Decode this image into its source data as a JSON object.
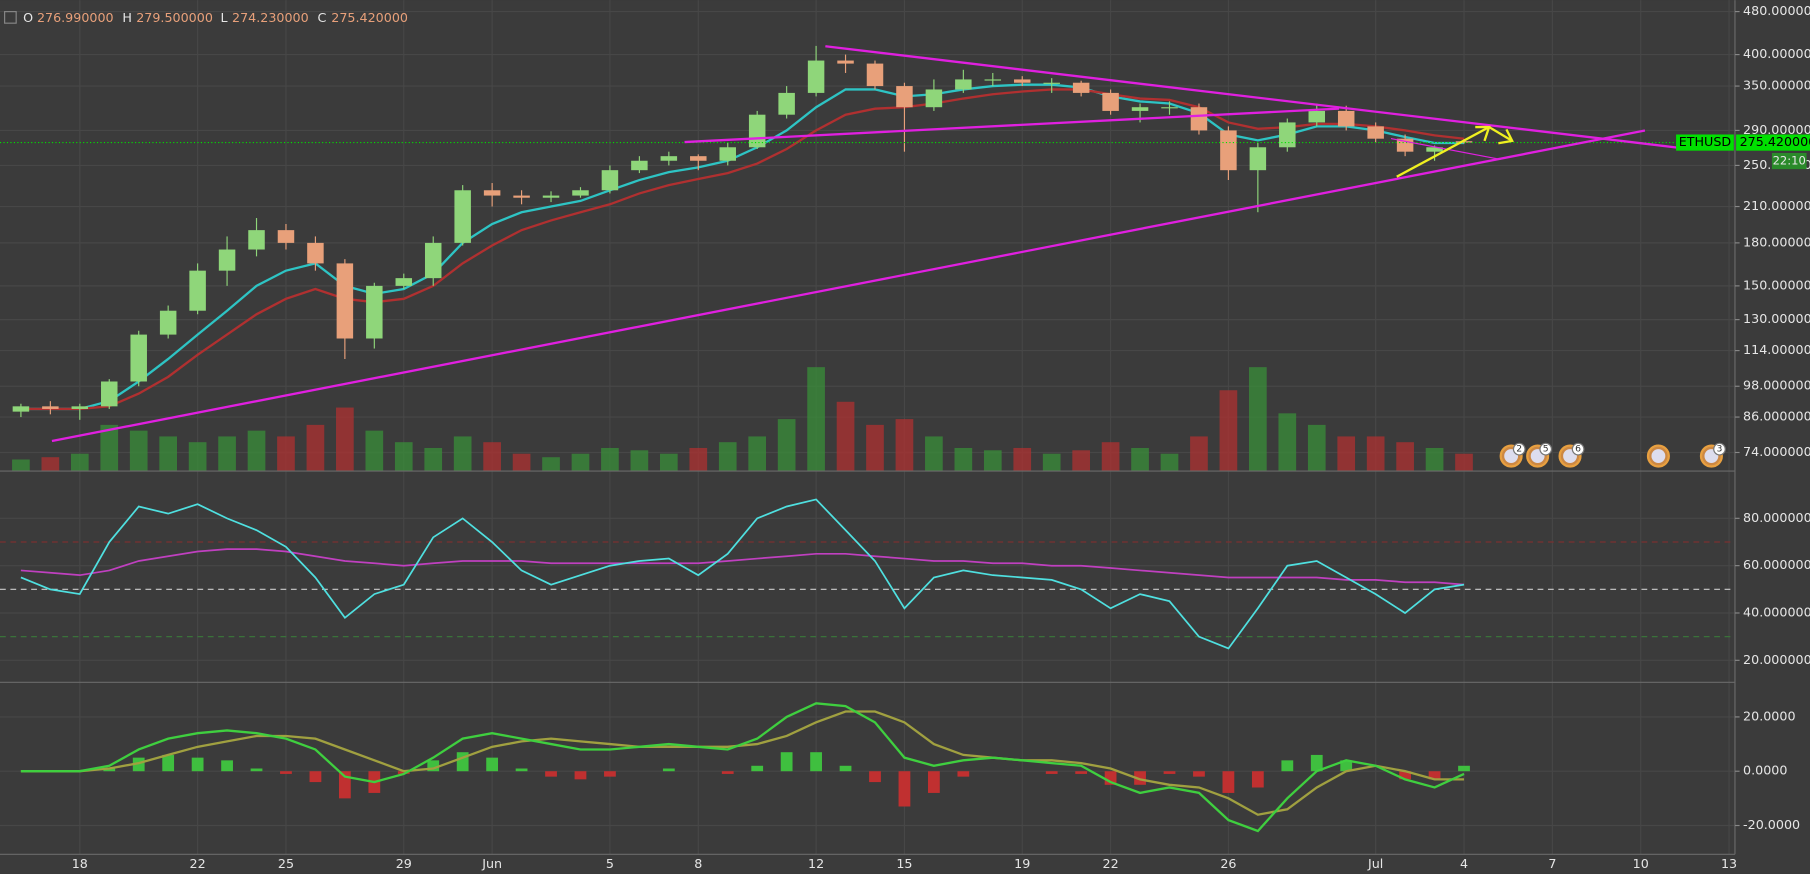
{
  "chart_data": {
    "type": "candlestick",
    "ylog": true,
    "ohlc": [
      {
        "label": "O",
        "value": "276.990000"
      },
      {
        "label": "H",
        "value": "279.500000"
      },
      {
        "label": "L",
        "value": "274.230000"
      },
      {
        "label": "C",
        "value": "275.420000"
      }
    ],
    "x": [
      16,
      17,
      18,
      19,
      20,
      21,
      22,
      23,
      24,
      25,
      26,
      27,
      28,
      29,
      30,
      31,
      32,
      33,
      34,
      35,
      36,
      37,
      38,
      39,
      40,
      41,
      42,
      43,
      44,
      45,
      46,
      47,
      48,
      49,
      50,
      51,
      52,
      53,
      54,
      55,
      56,
      57,
      58,
      59,
      60,
      61,
      62,
      63,
      64,
      65
    ],
    "xlim": [
      15.29,
      74.2
    ],
    "xticks": [
      18,
      22,
      25,
      29,
      {
        "value": 32,
        "label": "Jun"
      },
      {
        "value": 36,
        "label": "5"
      },
      {
        "value": 39,
        "label": "8"
      },
      {
        "value": 43,
        "label": "12"
      },
      {
        "value": 46,
        "label": "15"
      },
      {
        "value": 50,
        "label": "19"
      },
      {
        "value": 53,
        "label": "22"
      },
      {
        "value": 57,
        "label": "26"
      },
      {
        "value": 62,
        "label": "Jul"
      },
      {
        "value": 65,
        "label": "4"
      },
      {
        "value": 68,
        "label": "7"
      },
      {
        "value": 71,
        "label": "10"
      },
      {
        "value": 74,
        "label": "13"
      }
    ],
    "open": [
      88,
      90,
      89,
      90,
      100,
      122,
      135,
      160,
      175,
      190,
      180,
      165,
      120,
      150,
      155,
      180,
      225,
      220,
      218,
      220,
      225,
      245,
      255,
      260,
      255,
      270,
      310,
      340,
      390,
      385,
      350,
      320,
      345,
      360,
      360,
      355,
      355,
      340,
      315,
      320,
      320,
      290,
      245,
      270,
      300,
      315,
      295,
      280,
      265,
      276.99
    ],
    "high": [
      91,
      92,
      91,
      101,
      124,
      138,
      165,
      185,
      200,
      195,
      185,
      168,
      152,
      158,
      185,
      230,
      232,
      225,
      224,
      228,
      250,
      260,
      265,
      262,
      275,
      315,
      350,
      415,
      400,
      390,
      355,
      360,
      375,
      370,
      365,
      362,
      358,
      345,
      325,
      328,
      325,
      295,
      275,
      305,
      325,
      322,
      300,
      285,
      272,
      279.5
    ],
    "low": [
      86,
      87,
      85,
      89,
      98,
      120,
      133,
      150,
      170,
      175,
      160,
      110,
      115,
      148,
      150,
      178,
      210,
      212,
      214,
      218,
      222,
      242,
      250,
      245,
      250,
      268,
      305,
      335,
      370,
      345,
      265,
      315,
      340,
      350,
      350,
      340,
      335,
      310,
      300,
      310,
      285,
      235,
      205,
      265,
      295,
      290,
      275,
      260,
      255,
      274.23
    ],
    "close": [
      90,
      89,
      90,
      100,
      122,
      135,
      160,
      175,
      190,
      180,
      165,
      120,
      150,
      155,
      180,
      225,
      220,
      218,
      220,
      225,
      245,
      255,
      260,
      255,
      270,
      310,
      340,
      390,
      385,
      350,
      320,
      345,
      360,
      360,
      355,
      355,
      340,
      315,
      320,
      320,
      290,
      245,
      270,
      300,
      315,
      295,
      280,
      265,
      270,
      275.42
    ],
    "up_color": "#8fd67a",
    "down_color": "#e8a07a",
    "ylim": [
      68.4,
      504
    ],
    "yticks": [
      {
        "value": 480,
        "label": "480.000000"
      },
      {
        "value": 400,
        "label": "400.000000"
      },
      {
        "value": 350,
        "label": "350.000000"
      },
      {
        "value": 290,
        "label": "290.000000"
      },
      {
        "value": 250,
        "label": "250.000000"
      },
      {
        "value": 210,
        "label": "210.000000"
      },
      {
        "value": 180,
        "label": "180.000000"
      },
      {
        "value": 150,
        "label": "150.000000"
      },
      {
        "value": 130,
        "label": "130.000000"
      },
      {
        "value": 114,
        "label": "114.000000"
      },
      {
        "value": 98,
        "label": "98.000000"
      },
      {
        "value": 86,
        "label": "86.000000"
      },
      {
        "value": 74,
        "label": "74.000000"
      }
    ],
    "grid": true,
    "overlays": [
      {
        "color": "#2ec4c4",
        "values": [
          89,
          89,
          89,
          92,
          100,
          110,
          122,
          135,
          150,
          160,
          165,
          150,
          145,
          148,
          158,
          180,
          195,
          205,
          210,
          215,
          225,
          235,
          243,
          248,
          255,
          270,
          290,
          320,
          345,
          345,
          335,
          338,
          345,
          350,
          352,
          352,
          348,
          335,
          328,
          325,
          312,
          285,
          278,
          285,
          295,
          295,
          290,
          282,
          275,
          275
        ]
      },
      {
        "color": "#b03030",
        "values": [
          89,
          89,
          89,
          90,
          95,
          102,
          112,
          122,
          133,
          142,
          148,
          142,
          140,
          142,
          150,
          165,
          178,
          190,
          198,
          205,
          212,
          222,
          230,
          236,
          242,
          252,
          268,
          290,
          310,
          318,
          320,
          325,
          332,
          338,
          342,
          345,
          345,
          338,
          332,
          330,
          320,
          300,
          292,
          294,
          298,
          298,
          295,
          290,
          284,
          280
        ]
      }
    ],
    "volume": {
      "values": [
        10,
        12,
        15,
        40,
        35,
        30,
        25,
        30,
        35,
        30,
        40,
        55,
        35,
        25,
        20,
        30,
        25,
        15,
        12,
        15,
        20,
        18,
        15,
        20,
        25,
        30,
        45,
        90,
        60,
        40,
        45,
        30,
        20,
        18,
        20,
        15,
        18,
        25,
        20,
        15,
        30,
        70,
        90,
        50,
        40,
        30,
        30,
        25,
        20,
        15
      ],
      "vlim": [
        0,
        100
      ],
      "up_color": "#3a8a3a",
      "down_color": "#a83232"
    },
    "last_price": {
      "symbol": "ETHUSD",
      "value": 275.42,
      "label": "275.420000",
      "time": "22:10",
      "color": "#00e000"
    },
    "events": [
      {
        "x": 66.6,
        "label": "2"
      },
      {
        "x": 67.5,
        "label": "5"
      },
      {
        "x": 68.6,
        "label": "6"
      },
      {
        "x": 71.6
      },
      {
        "x": 73.4,
        "label": "3"
      }
    ],
    "rsi": {
      "type": "line",
      "color": "#4fe0e0",
      "values": [
        55,
        50,
        48,
        70,
        85,
        82,
        86,
        80,
        75,
        68,
        55,
        38,
        48,
        52,
        72,
        80,
        70,
        58,
        52,
        56,
        60,
        62,
        63,
        56,
        65,
        80,
        85,
        88,
        75,
        62,
        42,
        55,
        58,
        56,
        55,
        54,
        50,
        42,
        48,
        45,
        30,
        25,
        42,
        60,
        62,
        55,
        48,
        40,
        50,
        52
      ],
      "ma": {
        "color": "#c040c0",
        "values": [
          58,
          57,
          56,
          58,
          62,
          64,
          66,
          67,
          67,
          66,
          64,
          62,
          61,
          60,
          61,
          62,
          62,
          62,
          61,
          61,
          61,
          61,
          61,
          61,
          62,
          63,
          64,
          65,
          65,
          64,
          63,
          62,
          62,
          61,
          61,
          60,
          60,
          59,
          58,
          57,
          56,
          55,
          55,
          55,
          55,
          54,
          54,
          53,
          53,
          52
        ]
      },
      "levels": [
        70,
        50,
        30
      ],
      "ylim": [
        11.2,
        99
      ],
      "yticks": [
        {
          "value": 80,
          "label": "80.000000"
        },
        {
          "value": 60,
          "label": "60.000000"
        },
        {
          "value": 40,
          "label": "40.000000"
        },
        {
          "value": 20,
          "label": "20.000000"
        }
      ]
    },
    "macd": {
      "type": "macd",
      "macd": {
        "color": "#3fcf3f",
        "values": [
          0,
          0,
          0,
          2,
          8,
          12,
          14,
          15,
          14,
          12,
          8,
          -2,
          -4,
          -1,
          5,
          12,
          14,
          12,
          10,
          8,
          8,
          9,
          10,
          9,
          8,
          12,
          20,
          25,
          24,
          18,
          5,
          2,
          4,
          5,
          4,
          3,
          2,
          -4,
          -8,
          -6,
          -8,
          -18,
          -22,
          -10,
          0,
          4,
          2,
          -3,
          -6,
          -1
        ]
      },
      "signal": {
        "color": "#a0a040",
        "values": [
          0,
          0,
          0,
          1,
          3,
          6,
          9,
          11,
          13,
          13,
          12,
          8,
          4,
          0,
          1,
          5,
          9,
          11,
          12,
          11,
          10,
          9,
          9,
          9,
          9,
          10,
          13,
          18,
          22,
          22,
          18,
          10,
          6,
          5,
          4,
          4,
          3,
          1,
          -3,
          -5,
          -6,
          -10,
          -16,
          -14,
          -6,
          0,
          2,
          0,
          -3,
          -3
        ]
      },
      "histogram": {
        "up_color": "#3fbf3f",
        "down_color": "#c03030",
        "values": [
          0,
          0,
          0,
          1,
          5,
          6,
          5,
          4,
          1,
          -1,
          -4,
          -10,
          -8,
          -1,
          4,
          7,
          5,
          1,
          -2,
          -3,
          -2,
          0,
          1,
          0,
          -1,
          2,
          7,
          7,
          2,
          -4,
          -13,
          -8,
          -2,
          0,
          0,
          -1,
          -1,
          -5,
          -5,
          -1,
          -2,
          -8,
          -6,
          4,
          6,
          4,
          0,
          -3,
          -3,
          2
        ]
      },
      "ylim": [
        -30.6,
        31.9
      ],
      "yticks": [
        {
          "value": 20,
          "label": "20.0000"
        },
        {
          "value": 0,
          "label": "0.0000"
        },
        {
          "value": -20,
          "label": "-20.0000"
        }
      ]
    }
  }
}
